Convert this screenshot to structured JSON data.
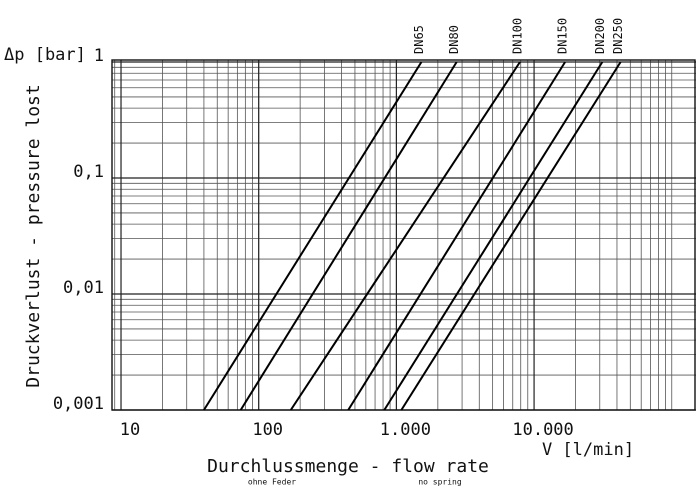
{
  "chart_data": {
    "type": "line",
    "y_unit_label": "Δp [bar]",
    "y_label": "Druckverlust - pressure lost",
    "x_label": "Durchlussmenge - flow rate",
    "x_unit_label": "V [l/min]",
    "notes": [
      "ohne Feder",
      "no spring"
    ],
    "x_log": true,
    "y_log": true,
    "grid": true,
    "minor_grid": true,
    "xlim": [
      8.6,
      150000
    ],
    "ylim": [
      0.001,
      1
    ],
    "xticks": [
      10,
      100,
      {
        "value": 1000,
        "label": "1.000"
      },
      {
        "value": 10000,
        "label": "10.000"
      }
    ],
    "yticks": [
      {
        "value": 0.001,
        "label": "0,001"
      },
      {
        "value": 0.01,
        "label": "0,01"
      },
      {
        "value": 0.1,
        "label": "0,1"
      },
      1
    ],
    "series": [
      {
        "name": "DN65",
        "color": "#000000",
        "x": [
          40,
          1520
        ],
        "values": [
          0.001,
          1
        ]
      },
      {
        "name": "DN80",
        "color": "#000000",
        "x": [
          74,
          2740
        ],
        "values": [
          0.001,
          1
        ]
      },
      {
        "name": "DN100",
        "color": "#000000",
        "x": [
          171,
          7900
        ],
        "values": [
          0.001,
          1
        ]
      },
      {
        "name": "DN150",
        "color": "#000000",
        "x": [
          447,
          16800
        ],
        "values": [
          0.001,
          1
        ]
      },
      {
        "name": "DN200",
        "color": "#000000",
        "x": [
          817,
          31300
        ],
        "values": [
          0.001,
          1
        ]
      },
      {
        "name": "DN250",
        "color": "#000000",
        "x": [
          1087,
          42500
        ],
        "values": [
          0.001,
          1
        ]
      }
    ]
  }
}
